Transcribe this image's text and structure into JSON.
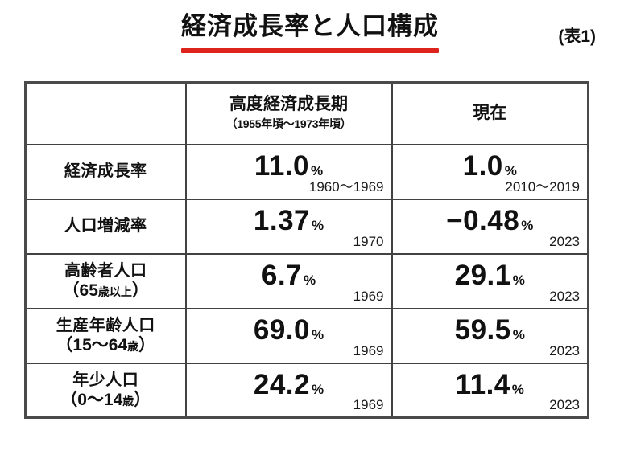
{
  "page": {
    "title": "経済成長率と人口構成",
    "table_tag": "(表1)"
  },
  "colors": {
    "underline_red": "#dc231c",
    "border_dark": "#424242",
    "text": "#111111"
  },
  "table": {
    "header": {
      "period_title": "高度経済成長期",
      "period_sub": "（1955年頃〜1973年頃）",
      "present_title": "現在"
    },
    "rows": [
      {
        "label_line1": "経済成長率",
        "label_line2_parts": [],
        "period": {
          "value": "11.0",
          "unit": "%",
          "note": "1960〜1969"
        },
        "present": {
          "value": "1.0",
          "unit": "%",
          "note": "2010〜2019"
        }
      },
      {
        "label_line1": "人口増減率",
        "label_line2_parts": [],
        "period": {
          "value": "1.37",
          "unit": "%",
          "note": "1970"
        },
        "present": {
          "value": "−0.48",
          "unit": "%",
          "note": "2023"
        }
      },
      {
        "label_line1": "高齢者人口",
        "label_line2_parts": [
          {
            "text": "（65",
            "small": false
          },
          {
            "text": "歳以上",
            "small": true
          },
          {
            "text": "）",
            "small": false
          }
        ],
        "period": {
          "value": "6.7",
          "unit": "%",
          "note": "1969"
        },
        "present": {
          "value": "29.1",
          "unit": "%",
          "note": "2023"
        }
      },
      {
        "label_line1": "生産年齢人口",
        "label_line2_parts": [
          {
            "text": "（15〜64",
            "small": false
          },
          {
            "text": "歳",
            "small": true
          },
          {
            "text": "）",
            "small": false
          }
        ],
        "period": {
          "value": "69.0",
          "unit": "%",
          "note": "1969"
        },
        "present": {
          "value": "59.5",
          "unit": "%",
          "note": "2023"
        }
      },
      {
        "label_line1": "年少人口",
        "label_line2_parts": [
          {
            "text": "（0〜14",
            "small": false
          },
          {
            "text": "歳",
            "small": true
          },
          {
            "text": "）",
            "small": false
          }
        ],
        "period": {
          "value": "24.2",
          "unit": "%",
          "note": "1969"
        },
        "present": {
          "value": "11.4",
          "unit": "%",
          "note": "2023"
        }
      }
    ]
  },
  "chart_data": {
    "type": "table",
    "title": "経済成長率と人口構成",
    "tag": "(表1)",
    "columns": [
      "",
      "高度経済成長期（1955年頃〜1973年頃）",
      "現在"
    ],
    "unit": "%",
    "rows": [
      {
        "label": "経済成長率",
        "period_value": 11.0,
        "period_note": "1960〜1969",
        "present_value": 1.0,
        "present_note": "2010〜2019"
      },
      {
        "label": "人口増減率",
        "period_value": 1.37,
        "period_note": "1970",
        "present_value": -0.48,
        "present_note": "2023"
      },
      {
        "label": "高齢者人口（65歳以上）",
        "period_value": 6.7,
        "period_note": "1969",
        "present_value": 29.1,
        "present_note": "2023"
      },
      {
        "label": "生産年齢人口（15〜64歳）",
        "period_value": 69.0,
        "period_note": "1969",
        "present_value": 59.5,
        "present_note": "2023"
      },
      {
        "label": "年少人口（0〜14歳）",
        "period_value": 24.2,
        "period_note": "1969",
        "present_value": 11.4,
        "present_note": "2023"
      }
    ]
  }
}
